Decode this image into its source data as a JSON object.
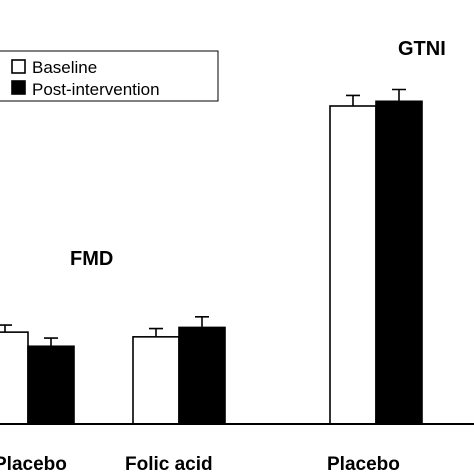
{
  "chart_data": {
    "type": "bar",
    "title": "",
    "xlabel": "",
    "ylabel": "",
    "groups": [
      {
        "label": "FMD",
        "categories": [
          "Placebo",
          "Folic acid"
        ]
      },
      {
        "label": "GTNI",
        "categories": [
          "Placebo"
        ]
      }
    ],
    "categories": [
      "Placebo",
      "Folic acid",
      "Placebo"
    ],
    "series": [
      {
        "name": "Baseline",
        "style": "open",
        "values": [
          3.9,
          3.7,
          13.5
        ],
        "errors": [
          0.3,
          0.35,
          0.45
        ]
      },
      {
        "name": "Post-intervention",
        "style": "filled",
        "values": [
          3.3,
          4.1,
          13.7
        ],
        "errors": [
          0.35,
          0.45,
          0.5
        ]
      }
    ],
    "ylim": [
      0,
      18
    ],
    "grid": false,
    "legend_position": "top-left",
    "colors": {
      "open": "#ffffff",
      "filled": "#000000",
      "outline": "#000000"
    }
  }
}
